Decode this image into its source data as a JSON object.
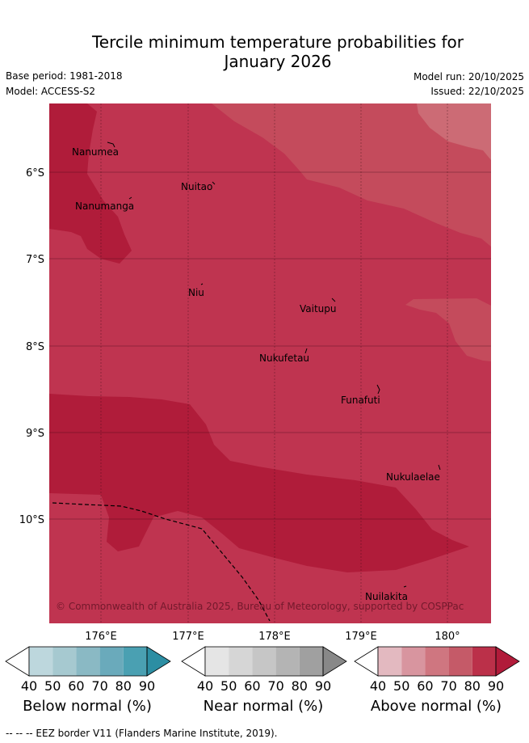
{
  "header": {
    "title_line1": "Tercile minimum temperature probabilities for",
    "title_line2": "January 2026",
    "base_period": "Base period: 1981-2018",
    "model": "Model: ACCESS-S2",
    "model_run": "Model run: 20/10/2025",
    "issued": "Issued: 22/10/2025"
  },
  "map": {
    "lat_labels": [
      "6°S",
      "7°S",
      "8°S",
      "9°S",
      "10°S"
    ],
    "lon_labels": [
      "176°E",
      "177°E",
      "178°E",
      "179°E",
      "180°"
    ],
    "places": [
      "Nanumea",
      "Nuitao",
      "Nanumanga",
      "Niu",
      "Vaitupu",
      "Nukufetau",
      "Funafuti",
      "Nukulaelae",
      "Nuilakita"
    ],
    "copyright": "© Commonwealth of Australia 2025, Bureau of Meteorology, supported by COSPPac",
    "colors": {
      "above_70_80": "#bf3450",
      "above_80_90": "#b01c3a",
      "above_60_70": "#c44b5c",
      "above_50_60": "#cc6b75"
    }
  },
  "colorbars": [
    {
      "label": "Below normal (%)",
      "ticks": [
        "40",
        "50",
        "60",
        "70",
        "80",
        "90"
      ],
      "colors": [
        "#ffffff",
        "#bdd7dd",
        "#a6c9d0",
        "#8ab9c4",
        "#6aaabb",
        "#4aa0b2",
        "#2c8ea3"
      ]
    },
    {
      "label": "Near normal (%)",
      "ticks": [
        "40",
        "50",
        "60",
        "70",
        "80",
        "90"
      ],
      "colors": [
        "#ffffff",
        "#e5e5e5",
        "#d6d6d6",
        "#c6c6c6",
        "#b4b4b4",
        "#a0a0a0",
        "#888888"
      ]
    },
    {
      "label": "Above normal (%)",
      "ticks": [
        "40",
        "50",
        "60",
        "70",
        "80",
        "90"
      ],
      "colors": [
        "#ffffff",
        "#e3b9c0",
        "#d8959f",
        "#cf7680",
        "#c55a68",
        "#bb3049",
        "#b11b3a"
      ]
    }
  ],
  "footnote": "-- -- -- EEZ border V11 (Flanders Marine Institute, 2019)."
}
